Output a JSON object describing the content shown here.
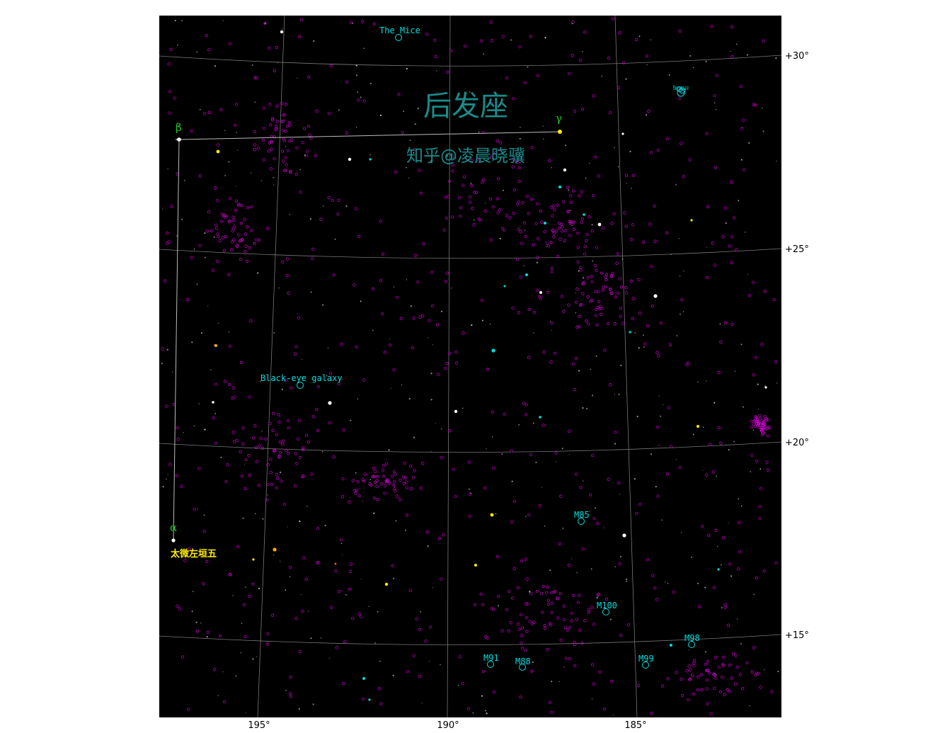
{
  "map": {
    "title": "后发座",
    "watermark": "知乎@凌晨晓骥",
    "background_color": "#000000",
    "grid_color": "#777777",
    "ra_axis": {
      "tick_labels": [
        "195°",
        "190°",
        "185°"
      ]
    },
    "dec_axis": {
      "tick_labels": [
        "+30°",
        "+25°",
        "+20°",
        "+15°"
      ]
    },
    "constellation_stars": [
      {
        "greek": "β",
        "color": "#22cc22"
      },
      {
        "greek": "γ",
        "color": "#22cc22"
      },
      {
        "greek": "α",
        "color": "#22cc22"
      }
    ],
    "star_name_label": {
      "text": "太微左垣五",
      "color": "#ffee00"
    },
    "deep_sky_objects": [
      {
        "name": "The Mice",
        "color": "#00dddd"
      },
      {
        "name": "Black-eye galaxy",
        "color": "#00dddd"
      },
      {
        "name": "M85",
        "color": "#00dddd"
      },
      {
        "name": "M100",
        "color": "#00dddd"
      },
      {
        "name": "M98",
        "color": "#00dddd"
      },
      {
        "name": "M99",
        "color": "#00dddd"
      },
      {
        "name": "M91",
        "color": "#00dddd"
      },
      {
        "name": "M88",
        "color": "#00dddd"
      },
      {
        "name": "Berenice",
        "color": "#00dddd"
      }
    ],
    "galaxy_marker_color": "#cc00cc",
    "title_color": "#1a8a8a"
  }
}
